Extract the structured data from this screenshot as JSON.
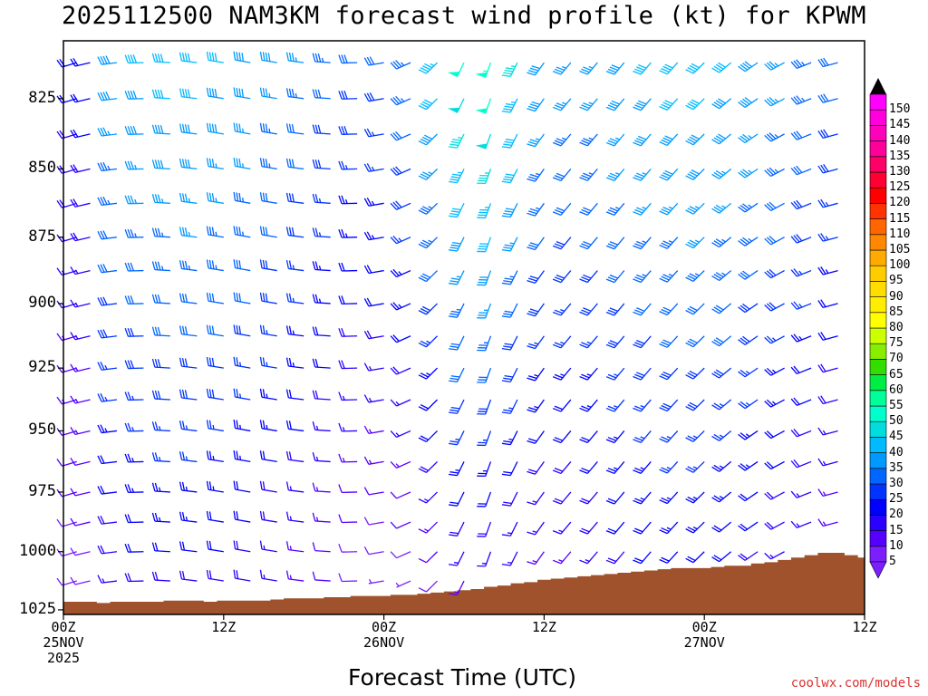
{
  "title": "2025112500 NAM3KM forecast wind profile (kt) for KPWM",
  "credit": "coolwx.com/models",
  "chart_data": {
    "type": "wind-barb-time-height",
    "title": "2025112500 NAM3KM forecast wind profile (kt) for KPWM",
    "xlabel": "Forecast Time (UTC)",
    "ylabel": "",
    "x_ticks": [
      {
        "hour": 0,
        "lines": [
          "00Z",
          "25NOV",
          "2025"
        ]
      },
      {
        "hour": 12,
        "lines": [
          "12Z"
        ]
      },
      {
        "hour": 24,
        "lines": [
          "00Z",
          "26NOV"
        ]
      },
      {
        "hour": 36,
        "lines": [
          "12Z"
        ]
      },
      {
        "hour": 48,
        "lines": [
          "00Z",
          "27NOV"
        ]
      },
      {
        "hour": 60,
        "lines": [
          "12Z"
        ]
      }
    ],
    "xlim": [
      0,
      60
    ],
    "y_ticks": [
      825,
      850,
      875,
      900,
      925,
      950,
      975,
      1000,
      1025
    ],
    "ylim": [
      1027,
      805
    ],
    "pressure_levels": [
      812.5,
      825,
      837.5,
      850,
      862.5,
      875,
      887.5,
      900,
      912.5,
      925,
      937.5,
      950,
      962.5,
      975,
      987.5,
      1000,
      1012.5
    ],
    "forecast_hours": [
      0,
      1,
      2,
      3,
      4,
      5,
      6,
      7,
      8,
      9,
      10,
      11,
      12,
      13,
      14,
      15,
      16,
      17,
      18,
      19,
      20,
      21,
      22,
      23,
      24,
      25,
      26,
      27,
      28,
      29,
      30,
      31,
      32,
      33,
      34,
      35,
      36,
      37,
      38,
      39,
      40,
      41,
      42,
      43,
      44,
      45,
      46,
      47,
      48,
      49,
      50,
      51,
      52,
      53,
      54,
      55,
      56,
      57,
      58,
      59,
      60
    ],
    "surface_pressure": [
      1021.5,
      1021.5,
      1021.5,
      1022,
      1021.5,
      1021.5,
      1021.5,
      1021.5,
      1021,
      1021,
      1021,
      1021.5,
      1021,
      1021,
      1021,
      1021,
      1020.5,
      1020,
      1020,
      1020,
      1019.5,
      1019.5,
      1019,
      1019,
      1019,
      1018.5,
      1018.5,
      1018,
      1017.5,
      1017,
      1016.5,
      1016,
      1015,
      1014.5,
      1013.5,
      1013,
      1012,
      1011.5,
      1011,
      1010.5,
      1010,
      1009.5,
      1009,
      1008.5,
      1008,
      1007.5,
      1007,
      1007,
      1007,
      1006.5,
      1006,
      1006,
      1005,
      1004.5,
      1003.5,
      1002.5,
      1001.5,
      1000.5,
      1000.5,
      1001.5,
      1002.5
    ],
    "colorbar": {
      "units": "kt",
      "values": [
        5,
        10,
        15,
        20,
        25,
        30,
        35,
        40,
        45,
        50,
        55,
        60,
        65,
        70,
        75,
        80,
        85,
        90,
        95,
        100,
        105,
        110,
        115,
        120,
        125,
        130,
        135,
        140,
        145,
        150
      ],
      "colors": [
        "#7b1fff",
        "#5500ff",
        "#2a00ff",
        "#0000ff",
        "#0033ff",
        "#0066ff",
        "#0099ff",
        "#00bbff",
        "#00dddd",
        "#00ffcc",
        "#00ff99",
        "#00ee44",
        "#33dd00",
        "#88ee00",
        "#ccff00",
        "#ffff00",
        "#ffee00",
        "#ffdd00",
        "#ffcc00",
        "#ffaa00",
        "#ff8800",
        "#ff6600",
        "#ff3300",
        "#ff0000",
        "#ff0033",
        "#ff0066",
        "#ff0099",
        "#ff00bb",
        "#ff00dd",
        "#ff00ff"
      ]
    }
  }
}
